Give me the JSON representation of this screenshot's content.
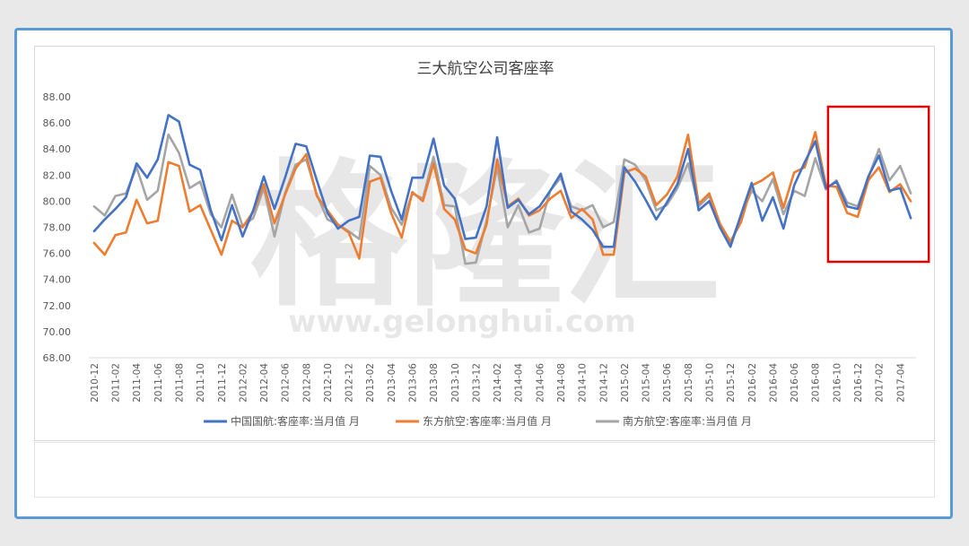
{
  "colors": {
    "china_eastern_series": "#ed7d31",
    "air_china_series": "#4472c4",
    "china_southern_series": "#a5a5a5",
    "highlight_box": "#e00000",
    "frame_border": "#5b9bd5"
  },
  "watermark": {
    "logo_text": "格隆汇",
    "url_text": "www.gelonghui.com"
  },
  "chart_data": {
    "type": "line",
    "title": "三大航空公司客座率",
    "ylim": [
      68,
      88
    ],
    "yticks": [
      "68.00",
      "70.00",
      "72.00",
      "74.00",
      "76.00",
      "78.00",
      "80.00",
      "82.00",
      "84.00",
      "86.00",
      "88.00"
    ],
    "x": [
      "2010-12",
      "2011-01",
      "2011-02",
      "2011-03",
      "2011-04",
      "2011-05",
      "2011-06",
      "2011-07",
      "2011-08",
      "2011-09",
      "2011-10",
      "2011-11",
      "2011-12",
      "2012-01",
      "2012-02",
      "2012-03",
      "2012-04",
      "2012-05",
      "2012-06",
      "2012-07",
      "2012-08",
      "2012-09",
      "2012-10",
      "2012-11",
      "2012-12",
      "2013-01",
      "2013-02",
      "2013-03",
      "2013-04",
      "2013-05",
      "2013-06",
      "2013-07",
      "2013-08",
      "2013-09",
      "2013-10",
      "2013-11",
      "2013-12",
      "2014-01",
      "2014-02",
      "2014-03",
      "2014-04",
      "2014-05",
      "2014-06",
      "2014-07",
      "2014-08",
      "2014-09",
      "2014-10",
      "2014-11",
      "2014-12",
      "2015-01",
      "2015-02",
      "2015-03",
      "2015-04",
      "2015-05",
      "2015-06",
      "2015-07",
      "2015-08",
      "2015-09",
      "2015-10",
      "2015-11",
      "2015-12",
      "2016-01",
      "2016-02",
      "2016-03",
      "2016-04",
      "2016-05",
      "2016-06",
      "2016-07",
      "2016-08",
      "2016-09",
      "2016-10",
      "2016-11",
      "2016-12",
      "2017-01",
      "2017-02",
      "2017-03",
      "2017-04",
      "2017-05"
    ],
    "xtick_labels": [
      "2010-12",
      "2011-02",
      "2011-04",
      "2011-06",
      "2011-08",
      "2011-10",
      "2011-12",
      "2012-02",
      "2012-04",
      "2012-06",
      "2012-08",
      "2012-10",
      "2012-12",
      "2013-02",
      "2013-04",
      "2013-06",
      "2013-08",
      "2013-10",
      "2013-12",
      "2014-02",
      "2014-04",
      "2014-06",
      "2014-08",
      "2014-10",
      "2014-12",
      "2015-02",
      "2015-04",
      "2015-06",
      "2015-08",
      "2015-10",
      "2015-12",
      "2016-02",
      "2016-04",
      "2016-06",
      "2016-08",
      "2016-10",
      "2016-12",
      "2017-02",
      "2017-04"
    ],
    "series": [
      {
        "name": "中国国航:客座率:当月值 月",
        "color_key": "air_china_series",
        "values": [
          77.7,
          78.6,
          79.4,
          80.3,
          82.9,
          81.8,
          83.2,
          86.6,
          86.1,
          82.8,
          82.4,
          79.3,
          77.0,
          79.7,
          77.3,
          79.3,
          81.9,
          79.4,
          81.8,
          84.4,
          84.2,
          81.6,
          79.1,
          77.9,
          78.5,
          78.8,
          83.5,
          83.4,
          80.8,
          78.6,
          81.8,
          81.8,
          84.8,
          81.2,
          80.2,
          77.1,
          77.2,
          79.6,
          84.9,
          79.5,
          80.1,
          79.0,
          79.6,
          80.8,
          82.1,
          79.2,
          78.6,
          77.8,
          76.5,
          76.5,
          82.6,
          81.5,
          80.1,
          78.6,
          79.9,
          81.3,
          84.0,
          79.3,
          80.0,
          78.0,
          76.5,
          79.0,
          81.4,
          78.5,
          80.3,
          77.9,
          81.2,
          83.0,
          84.6,
          81.0,
          81.5,
          79.6,
          79.4,
          81.9,
          83.5,
          80.8,
          81.0,
          78.7
        ]
      },
      {
        "name": "东方航空:客座率:当月值 月",
        "color_key": "china_eastern_series",
        "values": [
          76.8,
          75.9,
          77.4,
          77.6,
          80.1,
          78.3,
          78.5,
          83.0,
          82.7,
          79.2,
          79.7,
          77.8,
          75.9,
          78.5,
          78.0,
          79.2,
          81.3,
          78.3,
          80.5,
          82.5,
          83.6,
          80.4,
          79.3,
          78.2,
          77.6,
          75.6,
          81.5,
          81.8,
          79.1,
          77.2,
          80.7,
          80.0,
          82.9,
          79.4,
          78.6,
          76.3,
          76.0,
          78.2,
          83.2,
          79.6,
          80.2,
          78.9,
          79.3,
          80.2,
          80.8,
          78.7,
          79.4,
          78.6,
          75.9,
          75.9,
          82.2,
          82.5,
          81.9,
          79.7,
          80.5,
          81.9,
          85.1,
          79.8,
          80.6,
          78.3,
          76.9,
          78.4,
          81.2,
          81.6,
          82.2,
          79.5,
          82.2,
          82.6,
          85.3,
          81.2,
          81.1,
          79.1,
          78.8,
          81.6,
          82.6,
          80.7,
          81.3,
          80.0
        ]
      },
      {
        "name": "南方航空:客座率:当月值 月",
        "color_key": "china_southern_series",
        "values": [
          79.6,
          78.9,
          80.4,
          80.6,
          82.6,
          80.1,
          80.8,
          85.1,
          83.7,
          81.0,
          81.5,
          79.0,
          78.0,
          80.5,
          78.1,
          78.7,
          81.0,
          77.3,
          80.6,
          82.8,
          83.2,
          80.5,
          78.6,
          78.2,
          77.7,
          77.1,
          82.7,
          82.0,
          79.5,
          78.2,
          80.6,
          80.2,
          83.4,
          79.7,
          79.6,
          75.2,
          75.3,
          78.5,
          82.6,
          78.0,
          79.7,
          77.6,
          77.9,
          80.8,
          81.8,
          79.6,
          79.3,
          79.7,
          78.0,
          78.4,
          83.2,
          82.8,
          81.6,
          79.3,
          79.7,
          81.0,
          82.9,
          79.6,
          80.4,
          78.0,
          76.7,
          78.9,
          80.8,
          80.0,
          81.7,
          79.0,
          80.8,
          80.4,
          83.3,
          80.9,
          81.6,
          79.9,
          79.6,
          81.8,
          84.0,
          81.6,
          82.7,
          80.6
        ]
      }
    ],
    "highlight_range": [
      "2016-10",
      "2017-05"
    ],
    "grid": false,
    "legend_position": "bottom"
  }
}
